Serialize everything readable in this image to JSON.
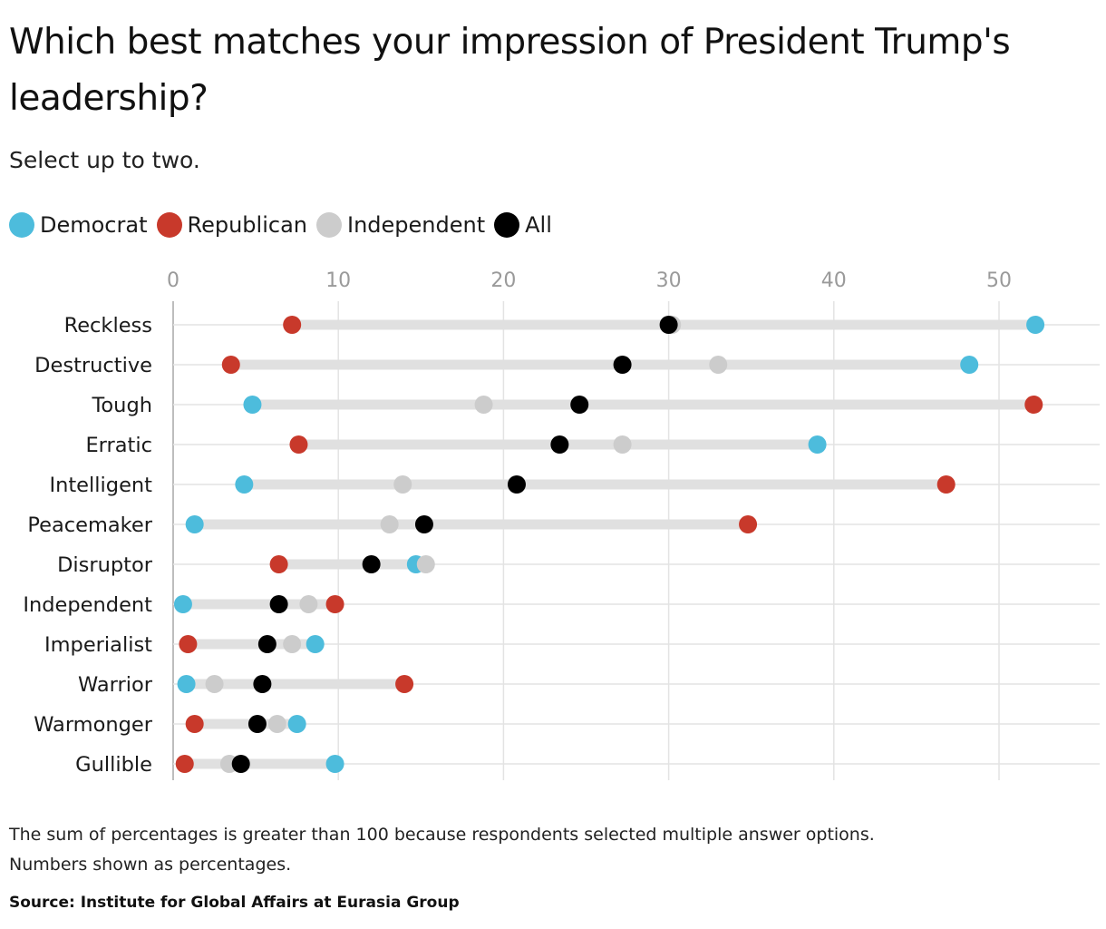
{
  "title": "Which best matches your impression of President Trump's leadership?",
  "subtitle": "Select up to two.",
  "notes": [
    "The sum of percentages is greater than 100 because respondents selected multiple answer options.",
    "Numbers shown as percentages."
  ],
  "source": "Source: Institute for Global Affairs at Eurasia Group",
  "colors": {
    "Democrat": "#4dbcdc",
    "Republican": "#c8392b",
    "Independent": "#cccccc",
    "All": "#000000",
    "range": "#e0e0e0",
    "grid": "#e3e3e3",
    "tick": "#9a9a9a"
  },
  "chart_data": {
    "type": "dot-range",
    "xlim": [
      0,
      55
    ],
    "xticks": [
      0,
      10,
      20,
      30,
      40,
      50
    ],
    "grid": true,
    "legend": "top-left",
    "series_names": [
      "Democrat",
      "Republican",
      "Independent",
      "All"
    ],
    "categories": [
      "Reckless",
      "Destructive",
      "Tough",
      "Erratic",
      "Intelligent",
      "Peacemaker",
      "Disruptor",
      "Independent",
      "Imperialist",
      "Warrior",
      "Warmonger",
      "Gullible"
    ],
    "series": [
      {
        "name": "Democrat",
        "values": [
          52.2,
          48.2,
          4.8,
          39.0,
          4.3,
          1.3,
          14.7,
          0.6,
          8.6,
          0.8,
          7.5,
          9.8
        ]
      },
      {
        "name": "Republican",
        "values": [
          7.2,
          3.5,
          52.1,
          7.6,
          46.8,
          34.8,
          6.4,
          9.8,
          0.9,
          14.0,
          1.3,
          0.7
        ]
      },
      {
        "name": "Independent",
        "values": [
          30.2,
          33.0,
          18.8,
          27.2,
          13.9,
          13.1,
          15.3,
          8.2,
          7.2,
          2.5,
          6.3,
          3.4
        ]
      },
      {
        "name": "All",
        "values": [
          30.0,
          27.2,
          24.6,
          23.4,
          20.8,
          15.2,
          12.0,
          6.4,
          5.7,
          5.4,
          5.1,
          4.1
        ]
      }
    ]
  }
}
